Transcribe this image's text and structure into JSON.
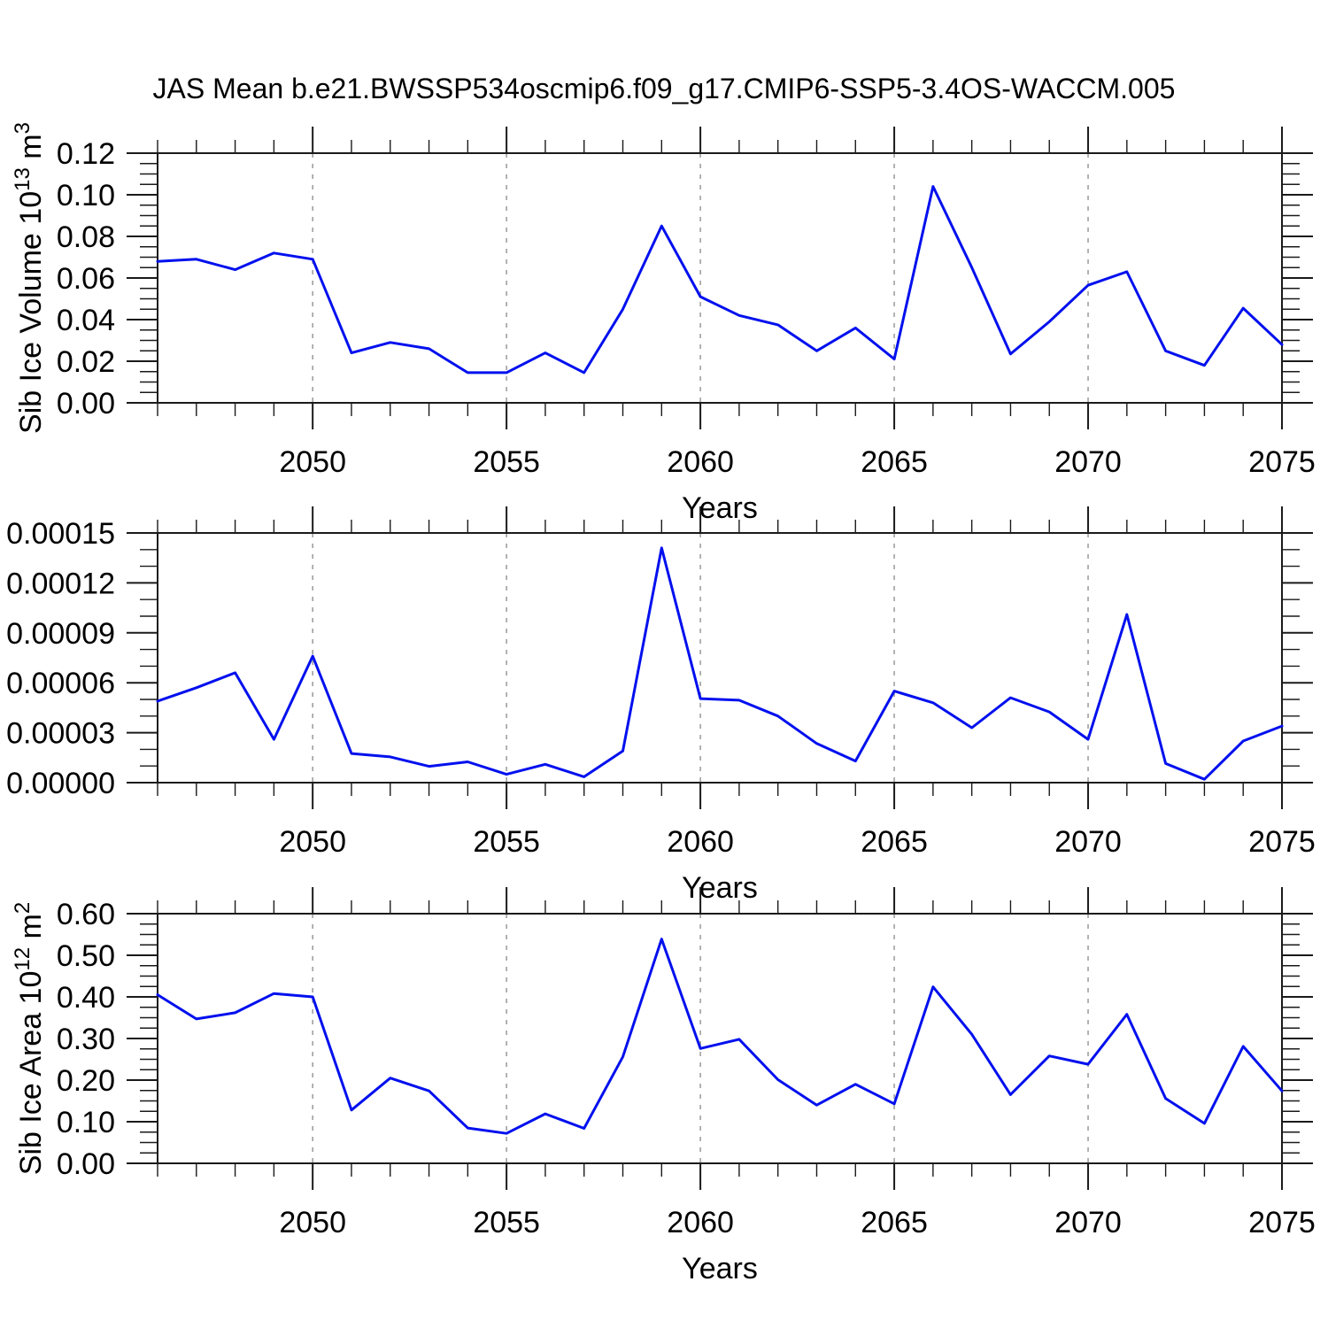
{
  "title": "JAS Mean b.e21.BWSSP534oscmip6.f09_g17.CMIP6-SSP5-3.4OS-WACCM.005",
  "colors": {
    "line": "#0010EE",
    "frame": "#1a1a1a",
    "grid": "#999999",
    "text": "#000000"
  },
  "chart_data": [
    {
      "type": "line",
      "name": "sib-ice-volume",
      "xlabel": "Years",
      "ylabel_segments": [
        {
          "text": "Sib Ice Volume 10"
        },
        {
          "text": "13",
          "sup": true
        },
        {
          "text": " m"
        },
        {
          "text": "3",
          "sup": true
        }
      ],
      "xlim": [
        2046,
        2075
      ],
      "ylim": [
        0,
        0.12
      ],
      "ytick_step": 0.02,
      "yminor_step": 0.005,
      "ydecimals": 2,
      "xticks_major": [
        2050,
        2055,
        2060,
        2065,
        2070,
        2075
      ],
      "gridlines": [
        2050,
        2055,
        2060,
        2065,
        2070
      ],
      "x": [
        2046,
        2047,
        2048,
        2049,
        2050,
        2051,
        2052,
        2053,
        2054,
        2055,
        2056,
        2057,
        2058,
        2059,
        2060,
        2061,
        2062,
        2063,
        2064,
        2065,
        2066,
        2067,
        2068,
        2069,
        2070,
        2071,
        2072,
        2073,
        2074,
        2075
      ],
      "values": [
        0.068,
        0.069,
        0.064,
        0.072,
        0.069,
        0.024,
        0.029,
        0.026,
        0.0145,
        0.0145,
        0.024,
        0.0145,
        0.045,
        0.085,
        0.051,
        0.042,
        0.0375,
        0.025,
        0.036,
        0.021,
        0.104,
        0.065,
        0.0235,
        0.039,
        0.0565,
        0.063,
        0.025,
        0.018,
        0.0455,
        0.028
      ]
    },
    {
      "type": "line",
      "name": "sib-ice-middle-series",
      "xlabel": "Years",
      "ylabel_segments": [],
      "xlim": [
        2046,
        2075
      ],
      "ylim": [
        0,
        0.00015
      ],
      "ytick_step": 3e-05,
      "yminor_step": 1e-05,
      "ydecimals": 5,
      "xticks_major": [
        2050,
        2055,
        2060,
        2065,
        2070,
        2075
      ],
      "gridlines": [
        2050,
        2055,
        2060,
        2065,
        2070
      ],
      "x": [
        2046,
        2047,
        2048,
        2049,
        2050,
        2051,
        2052,
        2053,
        2054,
        2055,
        2056,
        2057,
        2058,
        2059,
        2060,
        2061,
        2062,
        2063,
        2064,
        2065,
        2066,
        2067,
        2068,
        2069,
        2070,
        2071,
        2072,
        2073,
        2074,
        2075
      ],
      "values": [
        4.9e-05,
        5.7e-05,
        6.6e-05,
        2.6e-05,
        7.6e-05,
        1.75e-05,
        1.55e-05,
        9.8e-06,
        1.25e-05,
        5e-06,
        1.1e-05,
        3.5e-06,
        1.9e-05,
        0.000141,
        5.05e-05,
        4.95e-05,
        4e-05,
        2.35e-05,
        1.3e-05,
        5.5e-05,
        4.8e-05,
        3.3e-05,
        5.1e-05,
        4.25e-05,
        2.6e-05,
        0.000101,
        1.15e-05,
        2e-06,
        2.5e-05,
        3.4e-05
      ]
    },
    {
      "type": "line",
      "name": "sib-ice-area",
      "xlabel": "Years",
      "ylabel_segments": [
        {
          "text": "Sib Ice Area 10"
        },
        {
          "text": "12",
          "sup": true
        },
        {
          "text": " m"
        },
        {
          "text": "2",
          "sup": true
        }
      ],
      "xlim": [
        2046,
        2075
      ],
      "ylim": [
        0,
        0.6
      ],
      "ytick_step": 0.1,
      "yminor_step": 0.025,
      "ydecimals": 2,
      "xticks_major": [
        2050,
        2055,
        2060,
        2065,
        2070,
        2075
      ],
      "gridlines": [
        2050,
        2055,
        2060,
        2065,
        2070
      ],
      "x": [
        2046,
        2047,
        2048,
        2049,
        2050,
        2051,
        2052,
        2053,
        2054,
        2055,
        2056,
        2057,
        2058,
        2059,
        2060,
        2061,
        2062,
        2063,
        2064,
        2065,
        2066,
        2067,
        2068,
        2069,
        2070,
        2071,
        2072,
        2073,
        2074,
        2075
      ],
      "values": [
        0.405,
        0.347,
        0.362,
        0.408,
        0.4,
        0.128,
        0.205,
        0.174,
        0.085,
        0.072,
        0.119,
        0.084,
        0.256,
        0.539,
        0.276,
        0.298,
        0.201,
        0.14,
        0.19,
        0.143,
        0.424,
        0.31,
        0.165,
        0.258,
        0.238,
        0.358,
        0.156,
        0.096,
        0.281,
        0.174
      ]
    }
  ]
}
